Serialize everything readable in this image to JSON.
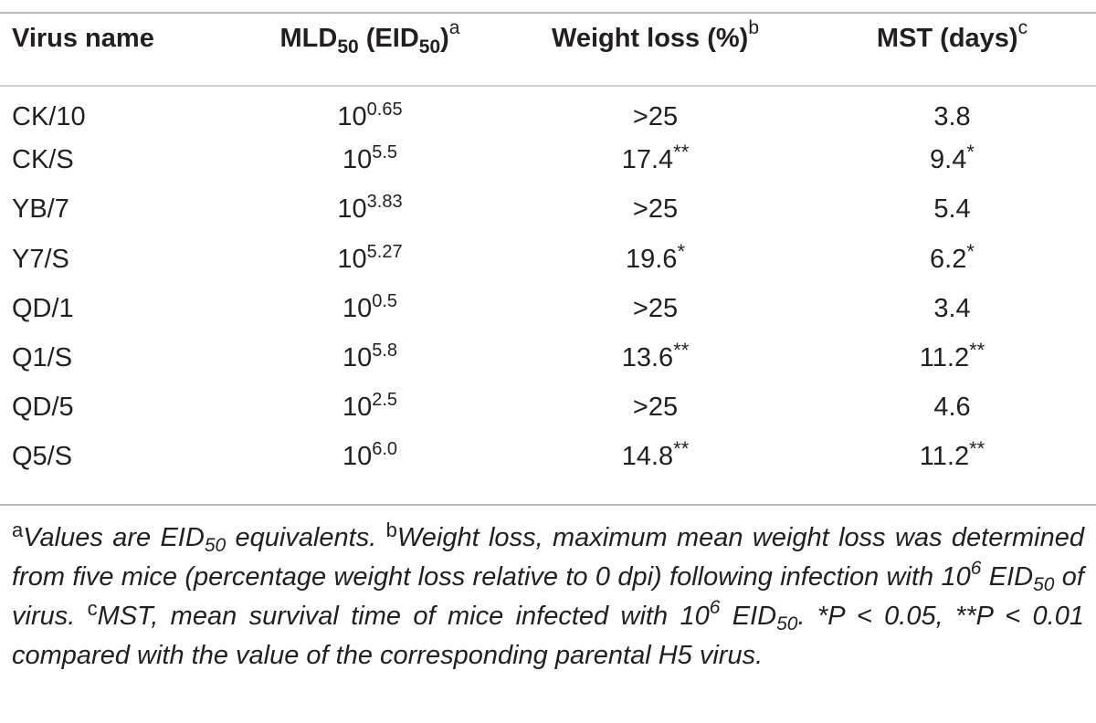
{
  "table": {
    "headers": {
      "virus_name": "Virus name",
      "mld_main": "MLD",
      "mld_sub": "50",
      "mld_paren_open": " (EID",
      "mld_paren_sub": "50",
      "mld_paren_close": ")",
      "mld_note": "a",
      "weight": "Weight loss (%)",
      "weight_note": "b",
      "mst": "MST (days)",
      "mst_note": "c"
    },
    "rows": [
      {
        "name": "CK/10",
        "mld_base": "10",
        "mld_exp": "0.65",
        "weight": ">25",
        "weight_sig": "",
        "mst": "3.8",
        "mst_sig": ""
      },
      {
        "name": "CK/S",
        "mld_base": "10",
        "mld_exp": "5.5",
        "weight": "17.4",
        "weight_sig": "**",
        "mst": "9.4",
        "mst_sig": "*"
      },
      {
        "name": "YB/7",
        "mld_base": "10",
        "mld_exp": "3.83",
        "weight": ">25",
        "weight_sig": "",
        "mst": "5.4",
        "mst_sig": ""
      },
      {
        "name": "Y7/S",
        "mld_base": "10",
        "mld_exp": "5.27",
        "weight": "19.6",
        "weight_sig": "*",
        "mst": "6.2",
        "mst_sig": "*"
      },
      {
        "name": "QD/1",
        "mld_base": "10",
        "mld_exp": "0.5",
        "weight": ">25",
        "weight_sig": "",
        "mst": "3.4",
        "mst_sig": ""
      },
      {
        "name": "Q1/S",
        "mld_base": "10",
        "mld_exp": "5.8",
        "weight": "13.6",
        "weight_sig": "**",
        "mst": "11.2",
        "mst_sig": "**"
      },
      {
        "name": "QD/5",
        "mld_base": "10",
        "mld_exp": "2.5",
        "weight": ">25",
        "weight_sig": "",
        "mst": "4.6",
        "mst_sig": ""
      },
      {
        "name": "Q5/S",
        "mld_base": "10",
        "mld_exp": "6.0",
        "weight": "14.8",
        "weight_sig": "**",
        "mst": "11.2",
        "mst_sig": "**"
      }
    ]
  },
  "footnote": {
    "a_mark": "a",
    "a_text_1": "Values are EID",
    "a_text_sub": "50",
    "a_text_2": " equivalents. ",
    "b_mark": "b",
    "b_text_1": "Weight loss, maximum mean weight loss was determined from five mice (percentage weight loss relative to 0 dpi) following infection with 10",
    "b_text_sup": "6",
    "b_text_2": " EID",
    "b_text_sub": "50",
    "b_text_3": " of virus. ",
    "c_mark": "c",
    "c_text_1": "MST, mean survival time of mice infected with 10",
    "c_text_sup": "6",
    "c_text_2": " EID",
    "c_text_sub": "50",
    "c_text_3": ". *P < 0.05, **P < 0.01 compared with the value of the corresponding parental H5 virus."
  }
}
